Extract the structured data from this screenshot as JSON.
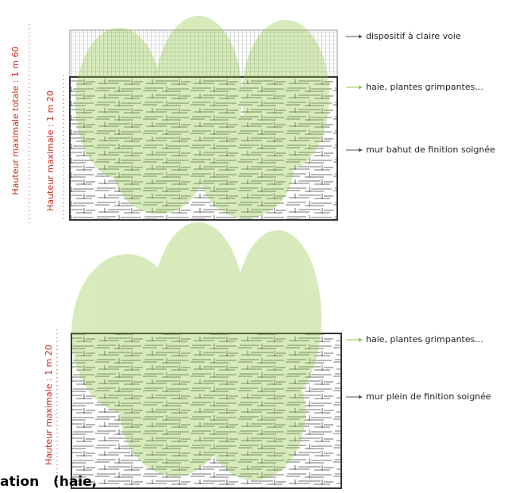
{
  "top": {
    "height_total": "Hauteur maximale totale : 1 m 60",
    "height_wall": "Hauteur maximale : 1 m 20",
    "labels": [
      "dispositif à claire voie",
      "haie, plantes grimpantes...",
      "mur bahut de finition soignée"
    ]
  },
  "bottom": {
    "height_wall": "Hauteur maximale : 1 m 20",
    "labels": [
      "haie, plantes grimpantes...",
      "mur plein de finition soignée"
    ]
  },
  "footer": {
    "text": "ation   (haie,"
  }
}
